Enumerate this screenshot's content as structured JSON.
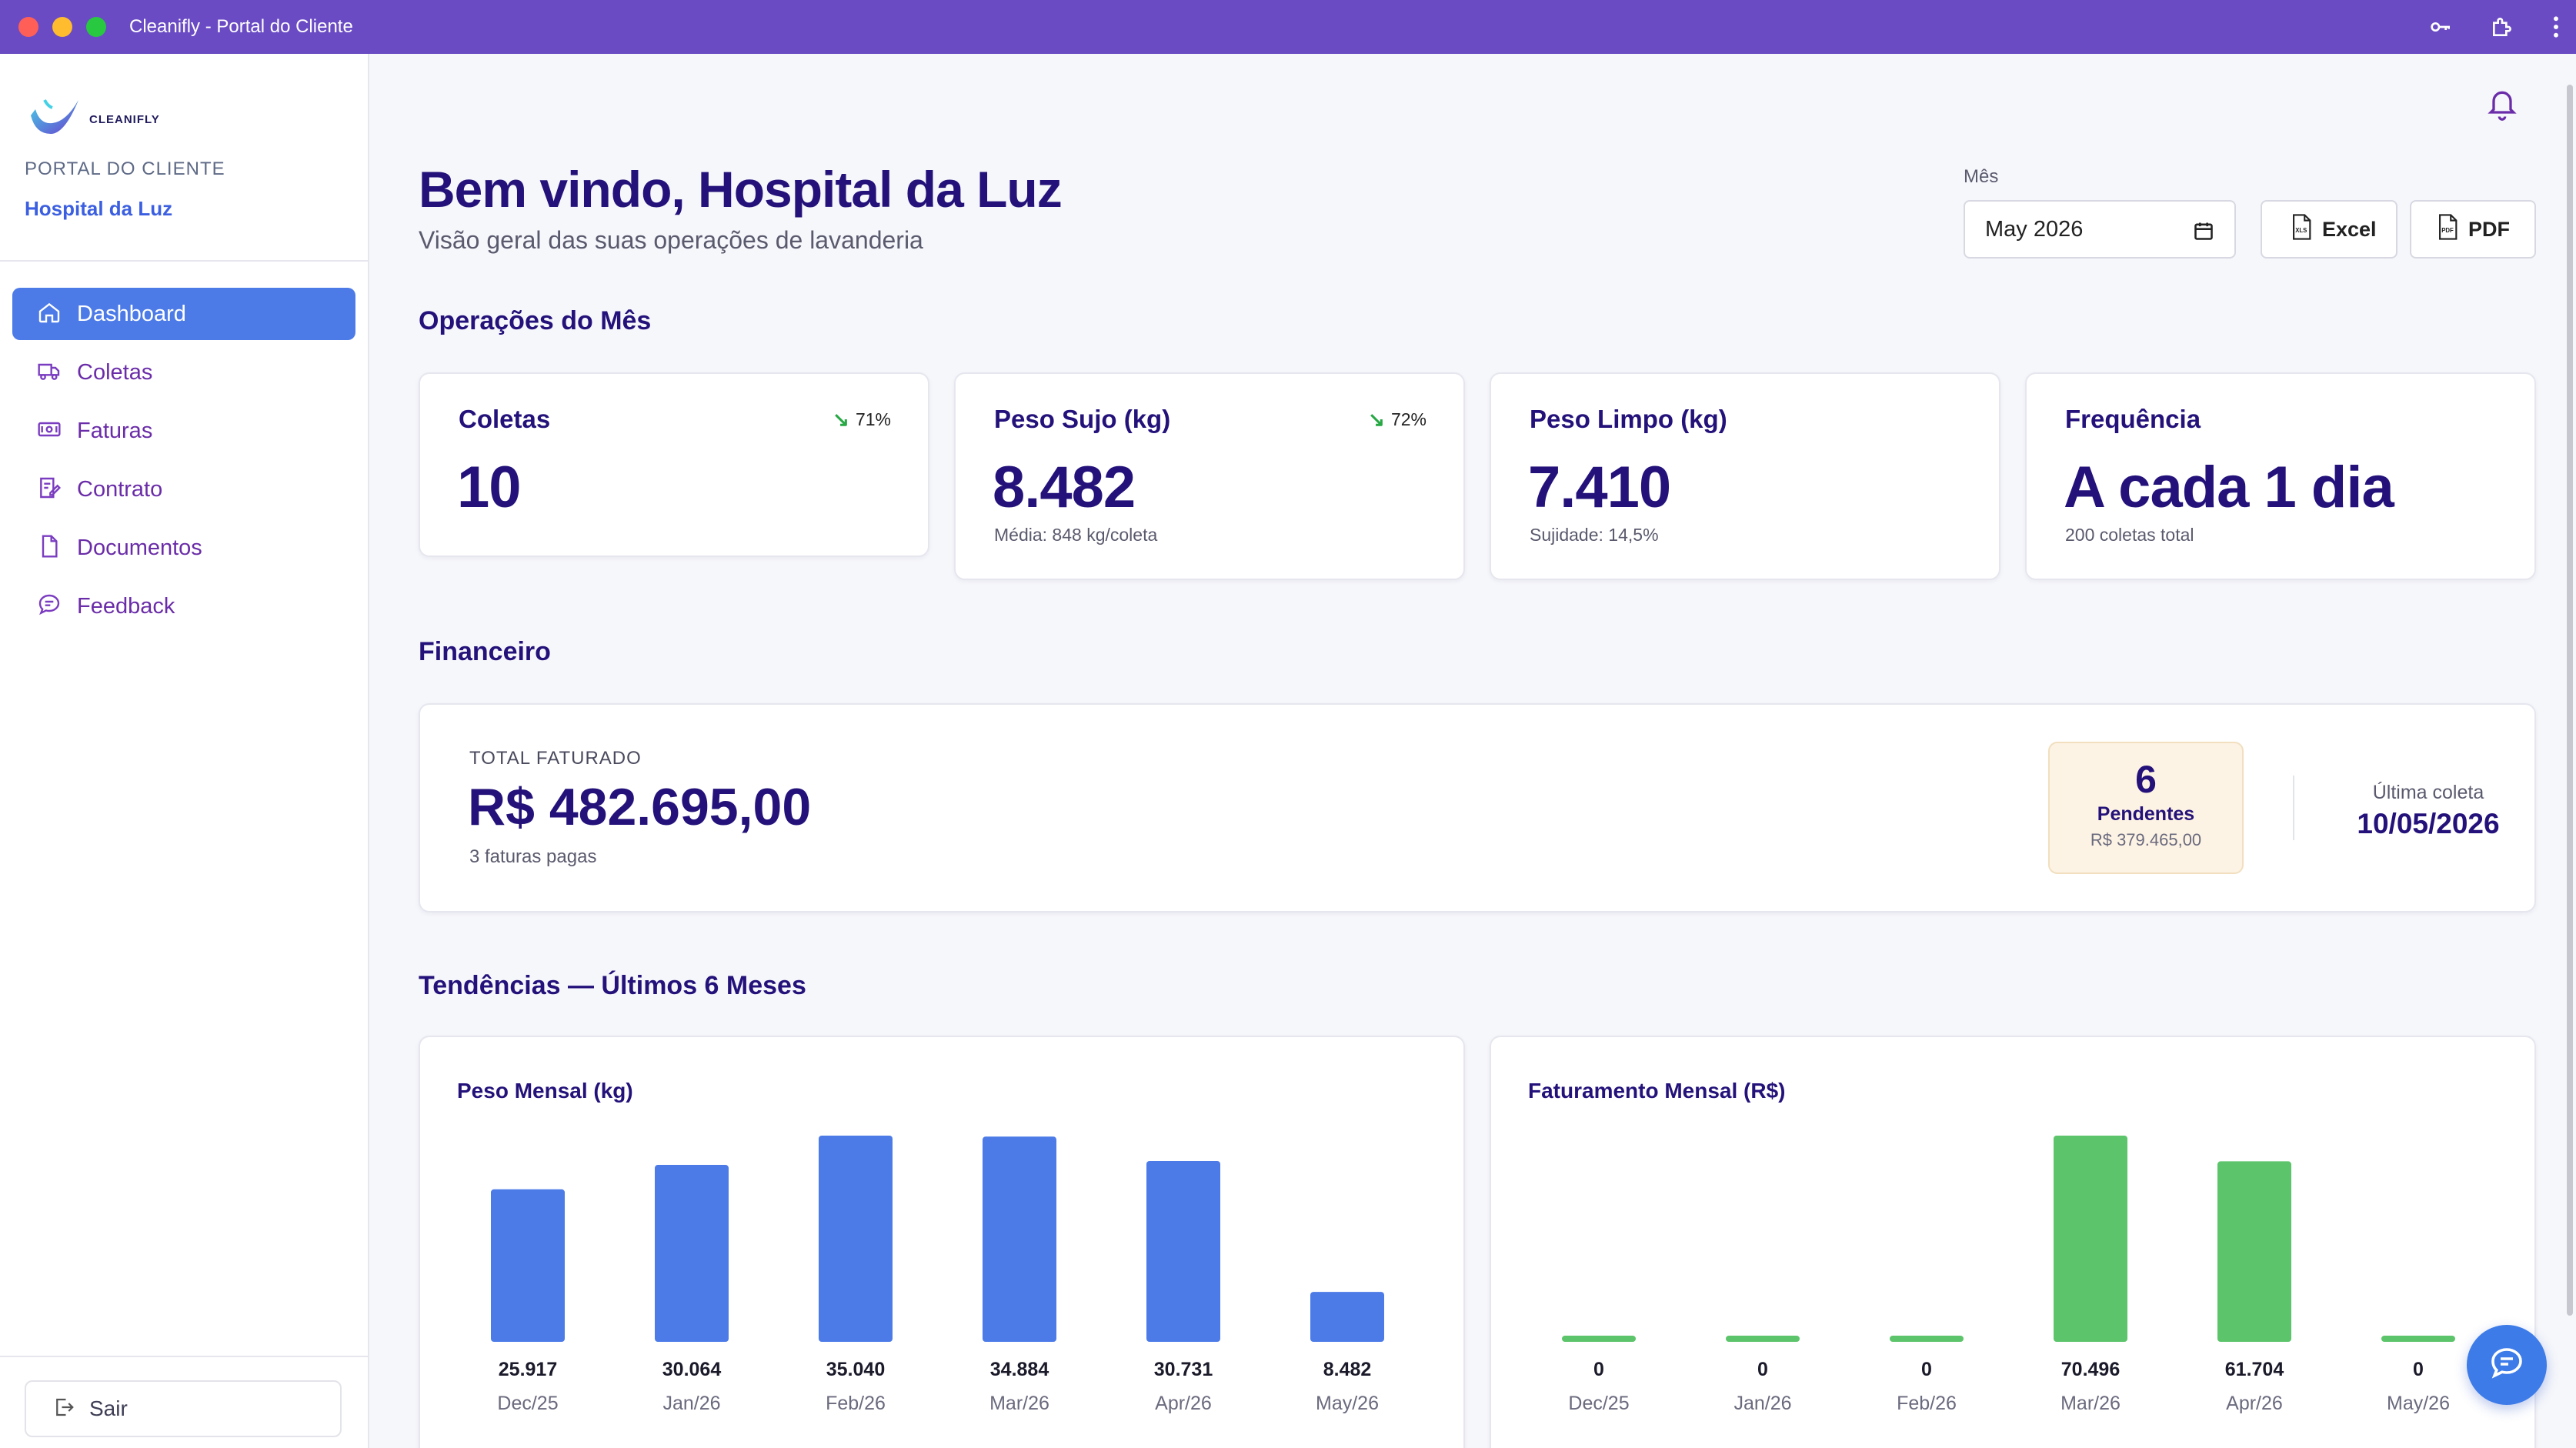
{
  "window": {
    "title": "Cleanifly - Portal do Cliente"
  },
  "sidebar": {
    "logo_text": "CLEANIFLY",
    "portal_label": "PORTAL DO CLIENTE",
    "client_name": "Hospital da Luz",
    "items": [
      {
        "label": "Dashboard",
        "icon": "home-icon",
        "active": true
      },
      {
        "label": "Coletas",
        "icon": "truck-icon"
      },
      {
        "label": "Faturas",
        "icon": "bill-icon"
      },
      {
        "label": "Contrato",
        "icon": "contract-icon"
      },
      {
        "label": "Documentos",
        "icon": "document-icon"
      },
      {
        "label": "Feedback",
        "icon": "chat-icon"
      }
    ],
    "logout_label": "Sair"
  },
  "header": {
    "title": "Bem vindo, Hospital da Luz",
    "subtitle": "Visão geral das suas operações de lavanderia",
    "month_label": "Mês",
    "month_value": "May 2026",
    "excel_label": "Excel",
    "pdf_label": "PDF"
  },
  "operations": {
    "section_title": "Operações do Mês",
    "cards": [
      {
        "title": "Coletas",
        "value": "10",
        "trend": "71%",
        "sub": ""
      },
      {
        "title": "Peso Sujo (kg)",
        "value": "8.482",
        "trend": "72%",
        "sub": "Média: 848 kg/coleta"
      },
      {
        "title": "Peso Limpo (kg)",
        "value": "7.410",
        "trend": "",
        "sub": "Sujidade: 14,5%"
      },
      {
        "title": "Frequência",
        "value": "A cada 1 dia",
        "trend": "",
        "sub": "200 coletas total"
      }
    ]
  },
  "financial": {
    "section_title": "Financeiro",
    "total_label": "TOTAL FATURADO",
    "total_value": "R$ 482.695,00",
    "total_sub": "3 faturas pagas",
    "pending_count": "6",
    "pending_label": "Pendentes",
    "pending_amount": "R$ 379.465,00",
    "last_label": "Última coleta",
    "last_value": "10/05/2026"
  },
  "trends": {
    "section_title": "Tendências — Últimos 6 Meses"
  },
  "colors": {
    "accent": "#4c7be8",
    "brand": "#6a4bc4",
    "green": "#5cc46a"
  },
  "chart_data": [
    {
      "type": "bar",
      "title": "Peso Mensal (kg)",
      "categories": [
        "Dec/25",
        "Jan/26",
        "Feb/26",
        "Mar/26",
        "Apr/26",
        "May/26"
      ],
      "values": [
        25917,
        30064,
        35040,
        34884,
        30731,
        8482
      ],
      "value_labels": [
        "25.917",
        "30.064",
        "35.040",
        "34.884",
        "30.731",
        "8.482"
      ],
      "color": "#4c7be8"
    },
    {
      "type": "bar",
      "title": "Faturamento Mensal (R$)",
      "categories": [
        "Dec/25",
        "Jan/26",
        "Feb/26",
        "Mar/26",
        "Apr/26",
        "May/26"
      ],
      "values": [
        0,
        0,
        0,
        70496,
        61704,
        0
      ],
      "value_labels": [
        "0",
        "0",
        "0",
        "70.496",
        "61.704",
        "0"
      ],
      "color": "#5cc46a"
    }
  ]
}
